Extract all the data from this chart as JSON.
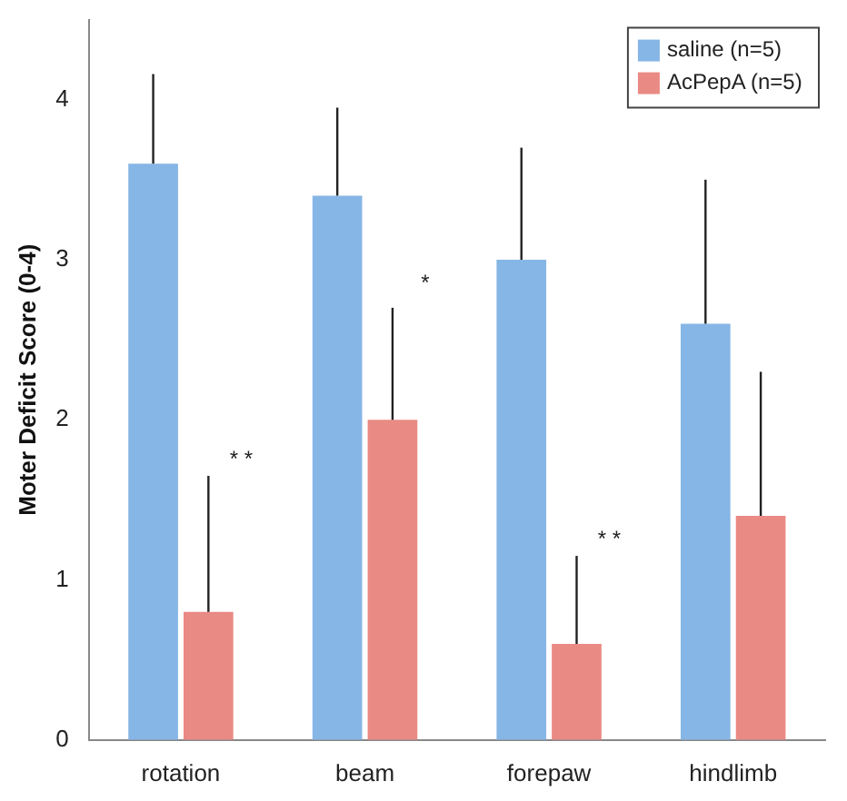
{
  "chart_data": {
    "type": "bar",
    "ylabel": "Moter Deficit Score (0-4)",
    "categories": [
      "rotation",
      "beam",
      "forepaw",
      "hindlimb"
    ],
    "series": [
      {
        "name": "saline (n=5)",
        "color": "#86b6e6",
        "values": [
          3.6,
          3.4,
          3.0,
          2.6
        ],
        "errors": [
          [
            3.6,
            4.16
          ],
          [
            3.4,
            3.95
          ],
          [
            3.0,
            3.7
          ],
          [
            2.6,
            3.5
          ]
        ]
      },
      {
        "name": "AcPepA (n=5)",
        "color": "#ea8a84",
        "values": [
          0.8,
          2.0,
          0.6,
          1.4
        ],
        "errors": [
          [
            0.8,
            1.65
          ],
          [
            2.0,
            2.7
          ],
          [
            0.6,
            1.15
          ],
          [
            1.4,
            2.3
          ]
        ]
      }
    ],
    "ylim": [
      0,
      4.5
    ],
    "yticks": [
      0,
      1,
      2,
      3,
      4
    ],
    "grid": false,
    "legend": "top right",
    "annotations": [
      {
        "text": "* *",
        "x": "rotation",
        "y": 1.75
      },
      {
        "text": "*",
        "x": "beam",
        "y": 2.85
      },
      {
        "text": "* *",
        "x": "forepaw",
        "y": 1.25
      }
    ]
  }
}
